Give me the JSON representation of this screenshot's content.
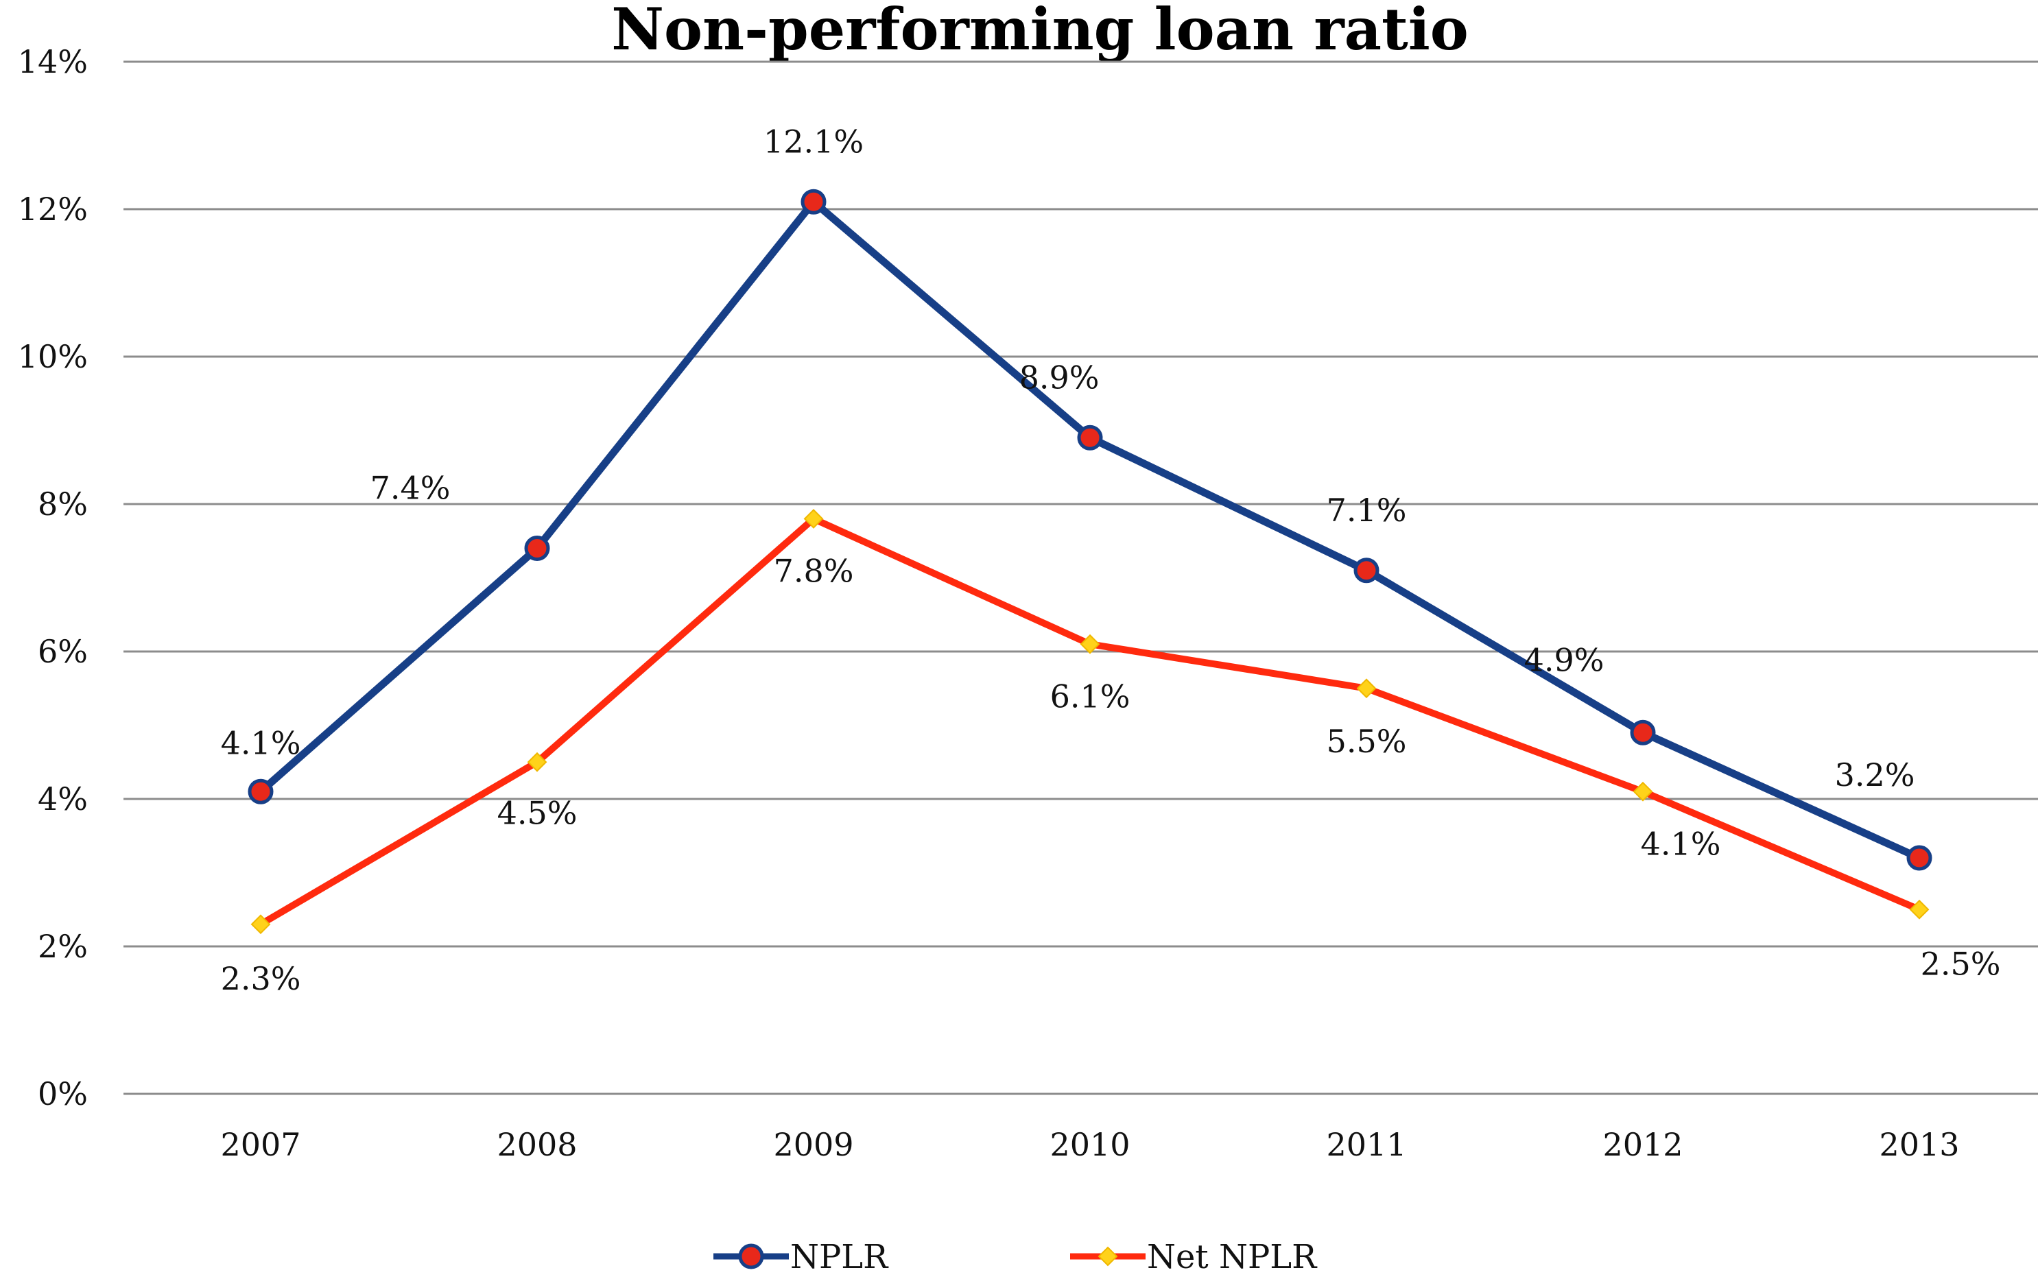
{
  "chart_data": {
    "type": "line",
    "title": "Non-performing loan ratio",
    "xlabel": "",
    "ylabel": "",
    "categories": [
      "2007",
      "2008",
      "2009",
      "2010",
      "2011",
      "2012",
      "2013"
    ],
    "ylim": [
      0,
      14
    ],
    "y_ticks": [
      0,
      2,
      4,
      6,
      8,
      10,
      12,
      14
    ],
    "y_tick_labels": [
      "0%",
      "2%",
      "4%",
      "6%",
      "8%",
      "10%",
      "12%",
      "14%"
    ],
    "grid": true,
    "legend_position": "bottom",
    "series": [
      {
        "name": "NPLR",
        "values": [
          4.1,
          7.4,
          12.1,
          8.9,
          7.1,
          4.9,
          3.2
        ],
        "labels": [
          "4.1%",
          "7.4%",
          "12.1%",
          "8.9%",
          "7.1%",
          "4.9%",
          "3.2%"
        ],
        "line_color": "#173F87",
        "marker": "circle",
        "marker_color": "#E8281A"
      },
      {
        "name": "Net NPLR",
        "values": [
          2.3,
          4.5,
          7.8,
          6.1,
          5.5,
          4.1,
          2.5
        ],
        "labels": [
          "2.3%",
          "4.5%",
          "7.8%",
          "6.1%",
          "5.5%",
          "4.1%",
          "2.5%"
        ],
        "line_color": "#FF2A0E",
        "marker": "diamond",
        "marker_color": "#FFD21A"
      }
    ]
  }
}
